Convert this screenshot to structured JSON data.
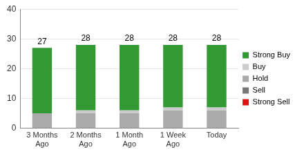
{
  "chart_data": {
    "type": "bar",
    "stacked": true,
    "categories": [
      "3 Months Ago",
      "2 Months Ago",
      "1 Month Ago",
      "1 Week Ago",
      "Today"
    ],
    "series": [
      {
        "name": "Strong Buy",
        "color": "#339933",
        "values": [
          22,
          22,
          22,
          21,
          21
        ]
      },
      {
        "name": "Buy",
        "color": "#cccccc",
        "values": [
          0,
          1,
          1,
          1,
          1
        ]
      },
      {
        "name": "Hold",
        "color": "#aaaaaa",
        "values": [
          5,
          5,
          5,
          6,
          6
        ]
      },
      {
        "name": "Sell",
        "color": "#777777",
        "values": [
          0,
          0,
          0,
          0,
          0
        ]
      },
      {
        "name": "Strong Sell",
        "color": "#dd1111",
        "values": [
          0,
          0,
          0,
          0,
          0
        ]
      }
    ],
    "totals": [
      27,
      28,
      28,
      28,
      28
    ],
    "ylim": [
      0,
      40
    ],
    "yticks": [
      0,
      10,
      20,
      30,
      40
    ],
    "grid": true,
    "legend": "right"
  }
}
